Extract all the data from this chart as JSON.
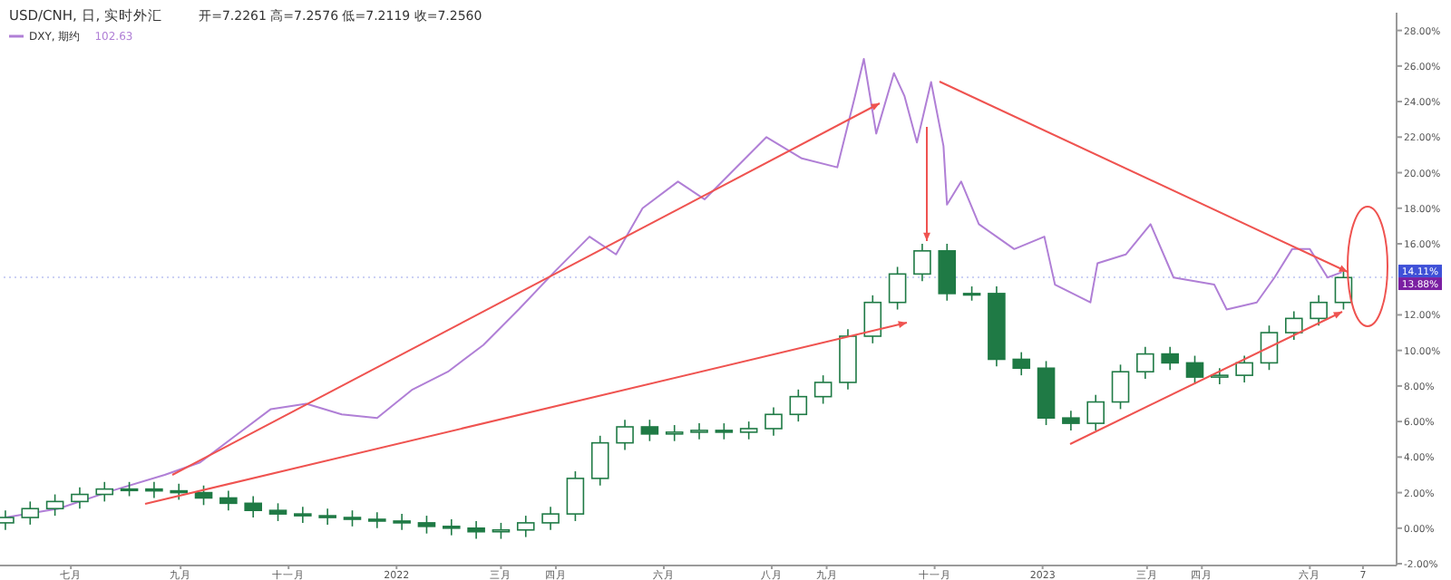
{
  "chart_data": {
    "type": "candlestick",
    "title": "USD/CNH, 日, 实时外汇",
    "annotations": [
      "开=7.2261 高=7.2576 低=7.2119 收=7.2560",
      "102.63",
      "13.88%"
    ],
    "xlim": [
      "2021-05-24",
      "2023-07-20"
    ],
    "xticks": [
      {
        "value": "2021-07-01",
        "label": "七月"
      },
      {
        "value": "2021-09-01",
        "label": "九月"
      },
      {
        "value": "2021-11-01",
        "label": "十一月"
      },
      {
        "value": "2022-01-01",
        "label": "2022"
      },
      {
        "value": "2022-03-01",
        "label": "三月"
      },
      {
        "value": "2022-04-01",
        "label": "四月"
      },
      {
        "value": "2022-06-01",
        "label": "六月"
      },
      {
        "value": "2022-08-01",
        "label": "八月"
      },
      {
        "value": "2022-09-01",
        "label": "九月"
      },
      {
        "value": "2022-11-01",
        "label": "十一月"
      },
      {
        "value": "2023-01-01",
        "label": "2023"
      },
      {
        "value": "2023-03-01",
        "label": "三月"
      },
      {
        "value": "2023-04-01",
        "label": "四月"
      },
      {
        "value": "2023-06-01",
        "label": "六月"
      },
      {
        "value": "2023-07-01",
        "label": "7"
      }
    ],
    "ylim": [
      -2.1,
      29
    ],
    "yticks": [
      {
        "value": -2,
        "label": "-2.00%"
      },
      {
        "value": 0,
        "label": "0.00%"
      },
      {
        "value": 2,
        "label": "2.00%"
      },
      {
        "value": 4,
        "label": "4.00%"
      },
      {
        "value": 6,
        "label": "6.00%"
      },
      {
        "value": 8,
        "label": "8.00%"
      },
      {
        "value": 10,
        "label": "10.00%"
      },
      {
        "value": 12,
        "label": "12.00%"
      },
      {
        "value": 16,
        "label": "16.00%"
      },
      {
        "value": 18,
        "label": "18.00%"
      },
      {
        "value": 20,
        "label": "20.00%"
      },
      {
        "value": 22,
        "label": "22.00%"
      },
      {
        "value": 24,
        "label": "24.00%"
      },
      {
        "value": 26,
        "label": "26.00%"
      },
      {
        "value": 28,
        "label": "28.00%"
      }
    ],
    "ref_lines": [
      {
        "axis": "y",
        "value": 14.11,
        "label": "14.11%",
        "color": "#3f51d8",
        "line_style": "dotted"
      }
    ],
    "legend": "top left",
    "series": [
      {
        "color": "#1f7a45",
        "x": [
          "2021-05-25",
          "2021-06-08",
          "2021-06-22",
          "2021-07-06",
          "2021-07-20",
          "2021-08-03",
          "2021-08-17",
          "2021-08-31",
          "2021-09-14",
          "2021-09-28",
          "2021-10-12",
          "2021-10-26",
          "2021-11-09",
          "2021-11-23",
          "2021-12-07",
          "2021-12-21",
          "2022-01-04",
          "2022-01-18",
          "2022-02-01",
          "2022-02-15",
          "2022-03-01",
          "2022-03-15",
          "2022-03-29",
          "2022-04-12",
          "2022-04-26",
          "2022-05-10",
          "2022-05-24",
          "2022-06-07",
          "2022-06-21",
          "2022-07-05",
          "2022-07-19",
          "2022-08-02",
          "2022-08-16",
          "2022-08-30",
          "2022-09-13",
          "2022-09-27",
          "2022-10-11",
          "2022-10-25",
          "2022-11-08",
          "2022-11-22",
          "2022-12-06",
          "2022-12-20",
          "2023-01-03",
          "2023-01-17",
          "2023-01-31",
          "2023-02-14",
          "2023-02-28",
          "2023-03-14",
          "2023-03-28",
          "2023-04-11",
          "2023-04-25",
          "2023-05-09",
          "2023-05-23",
          "2023-06-06",
          "2023-06-20"
        ],
        "ohlc": [
          [
            0.3,
            1.0,
            -0.1,
            0.6
          ],
          [
            0.6,
            1.5,
            0.2,
            1.1
          ],
          [
            1.1,
            1.9,
            0.7,
            1.5
          ],
          [
            1.5,
            2.3,
            1.1,
            1.9
          ],
          [
            1.9,
            2.6,
            1.5,
            2.2
          ],
          [
            2.2,
            2.6,
            1.8,
            2.2
          ],
          [
            2.2,
            2.6,
            1.7,
            2.1
          ],
          [
            2.1,
            2.5,
            1.6,
            2.0
          ],
          [
            2.0,
            2.4,
            1.3,
            1.7
          ],
          [
            1.7,
            2.1,
            1.0,
            1.4
          ],
          [
            1.4,
            1.8,
            0.6,
            1.0
          ],
          [
            1.0,
            1.4,
            0.4,
            0.8
          ],
          [
            0.8,
            1.2,
            0.3,
            0.7
          ],
          [
            0.7,
            1.1,
            0.2,
            0.6
          ],
          [
            0.6,
            1.0,
            0.1,
            0.5
          ],
          [
            0.5,
            0.9,
            0.0,
            0.4
          ],
          [
            0.4,
            0.8,
            -0.1,
            0.3
          ],
          [
            0.3,
            0.7,
            -0.3,
            0.1
          ],
          [
            0.1,
            0.5,
            -0.4,
            0.0
          ],
          [
            0.0,
            0.4,
            -0.6,
            -0.2
          ],
          [
            -0.2,
            0.3,
            -0.6,
            -0.1
          ],
          [
            -0.1,
            0.7,
            -0.5,
            0.3
          ],
          [
            0.3,
            1.2,
            -0.1,
            0.8
          ],
          [
            0.8,
            3.2,
            0.4,
            2.8
          ],
          [
            2.8,
            5.2,
            2.4,
            4.8
          ],
          [
            4.8,
            6.1,
            4.4,
            5.7
          ],
          [
            5.7,
            6.1,
            4.9,
            5.3
          ],
          [
            5.3,
            5.8,
            4.9,
            5.4
          ],
          [
            5.4,
            5.9,
            5.0,
            5.5
          ],
          [
            5.5,
            5.9,
            5.0,
            5.4
          ],
          [
            5.4,
            6.0,
            5.0,
            5.6
          ],
          [
            5.6,
            6.8,
            5.2,
            6.4
          ],
          [
            6.4,
            7.8,
            6.0,
            7.4
          ],
          [
            7.4,
            8.6,
            7.0,
            8.2
          ],
          [
            8.2,
            11.2,
            7.8,
            10.8
          ],
          [
            10.8,
            13.1,
            10.4,
            12.7
          ],
          [
            12.7,
            14.7,
            12.3,
            14.3
          ],
          [
            14.3,
            16.0,
            13.9,
            15.6
          ],
          [
            15.6,
            16.0,
            12.8,
            13.2
          ],
          [
            13.2,
            13.6,
            12.8,
            13.2
          ],
          [
            13.2,
            13.6,
            9.1,
            9.5
          ],
          [
            9.5,
            9.9,
            8.6,
            9.0
          ],
          [
            9.0,
            9.4,
            5.8,
            6.2
          ],
          [
            6.2,
            6.6,
            5.5,
            5.9
          ],
          [
            5.9,
            7.5,
            5.5,
            7.1
          ],
          [
            7.1,
            9.2,
            6.7,
            8.8
          ],
          [
            8.8,
            10.2,
            8.4,
            9.8
          ],
          [
            9.8,
            10.2,
            8.9,
            9.3
          ],
          [
            9.3,
            9.7,
            8.1,
            8.5
          ],
          [
            8.5,
            9.0,
            8.1,
            8.6
          ],
          [
            8.6,
            9.7,
            8.2,
            9.3
          ],
          [
            9.3,
            11.4,
            8.9,
            11.0
          ],
          [
            11.0,
            12.2,
            10.6,
            11.8
          ],
          [
            11.8,
            13.1,
            11.4,
            12.7
          ],
          [
            12.7,
            14.5,
            12.3,
            14.1
          ]
        ]
      },
      {
        "type": "line",
        "name": "DXY, 期约",
        "color": "#b07fd6",
        "x": [
          "2021-05-25",
          "2021-06-24",
          "2021-07-24",
          "2021-08-23",
          "2021-09-12",
          "2021-10-02",
          "2021-10-22",
          "2021-11-11",
          "2021-12-01",
          "2021-12-21",
          "2022-01-10",
          "2022-01-30",
          "2022-02-19",
          "2022-03-11",
          "2022-03-31",
          "2022-04-20",
          "2022-05-05",
          "2022-05-20",
          "2022-06-09",
          "2022-06-24",
          "2022-07-09",
          "2022-07-29",
          "2022-08-18",
          "2022-09-07",
          "2022-09-17",
          "2022-09-22",
          "2022-09-29",
          "2022-10-09",
          "2022-10-15",
          "2022-10-22",
          "2022-10-30",
          "2022-11-06",
          "2022-11-08",
          "2022-11-16",
          "2022-11-26",
          "2022-12-06",
          "2022-12-16",
          "2023-01-02",
          "2023-01-08",
          "2023-01-28",
          "2023-02-01",
          "2023-02-17",
          "2023-03-03",
          "2023-03-16",
          "2023-04-08",
          "2023-04-15",
          "2023-05-02",
          "2023-05-12",
          "2023-05-22",
          "2023-06-01",
          "2023-06-11",
          "2023-06-19"
        ],
        "values": [
          0.6,
          1.1,
          2.1,
          3.0,
          3.7,
          5.2,
          6.7,
          7.0,
          6.4,
          6.2,
          7.8,
          8.8,
          10.3,
          12.3,
          14.4,
          16.4,
          15.4,
          18.0,
          19.5,
          18.5,
          20.0,
          22.0,
          20.8,
          20.3,
          24.3,
          26.4,
          22.2,
          25.6,
          24.3,
          21.7,
          25.1,
          21.5,
          18.2,
          19.5,
          17.1,
          16.4,
          15.7,
          16.4,
          13.7,
          12.7,
          14.9,
          15.4,
          17.1,
          14.1,
          13.7,
          12.3,
          12.7,
          14.1,
          15.7,
          15.7,
          14.1,
          14.4
        ]
      }
    ]
  }
}
